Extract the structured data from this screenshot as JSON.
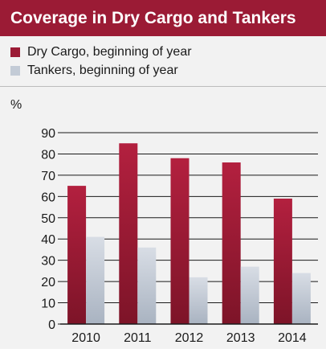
{
  "title": "Coverage in Dry Cargo and Tankers",
  "legend": [
    {
      "label": "Dry Cargo, beginning of year",
      "color": "#9b1b35"
    },
    {
      "label": "Tankers, beginning of year",
      "color": "#c3cbd6"
    }
  ],
  "colors": {
    "header_bg": "#9b1b35",
    "panel_bg": "#f2f2f2",
    "axis": "#1a1a1a"
  },
  "chart_data": {
    "type": "bar",
    "title": "Coverage in Dry Cargo and Tankers",
    "ylabel": "%",
    "xlabel": "",
    "categories": [
      "2010",
      "2011",
      "2012",
      "2013",
      "2014"
    ],
    "series": [
      {
        "name": "Dry Cargo, beginning of year",
        "values": [
          65,
          85,
          78,
          76,
          59
        ],
        "color": "#9b1b35"
      },
      {
        "name": "Tankers, beginning of year",
        "values": [
          41,
          36,
          22,
          27,
          24
        ],
        "color": "#c3cbd6"
      }
    ],
    "ylim": [
      0,
      90
    ],
    "yticks": [
      0,
      10,
      20,
      30,
      40,
      50,
      60,
      70,
      80,
      90
    ],
    "grid": true,
    "legend_position": "top-left"
  }
}
